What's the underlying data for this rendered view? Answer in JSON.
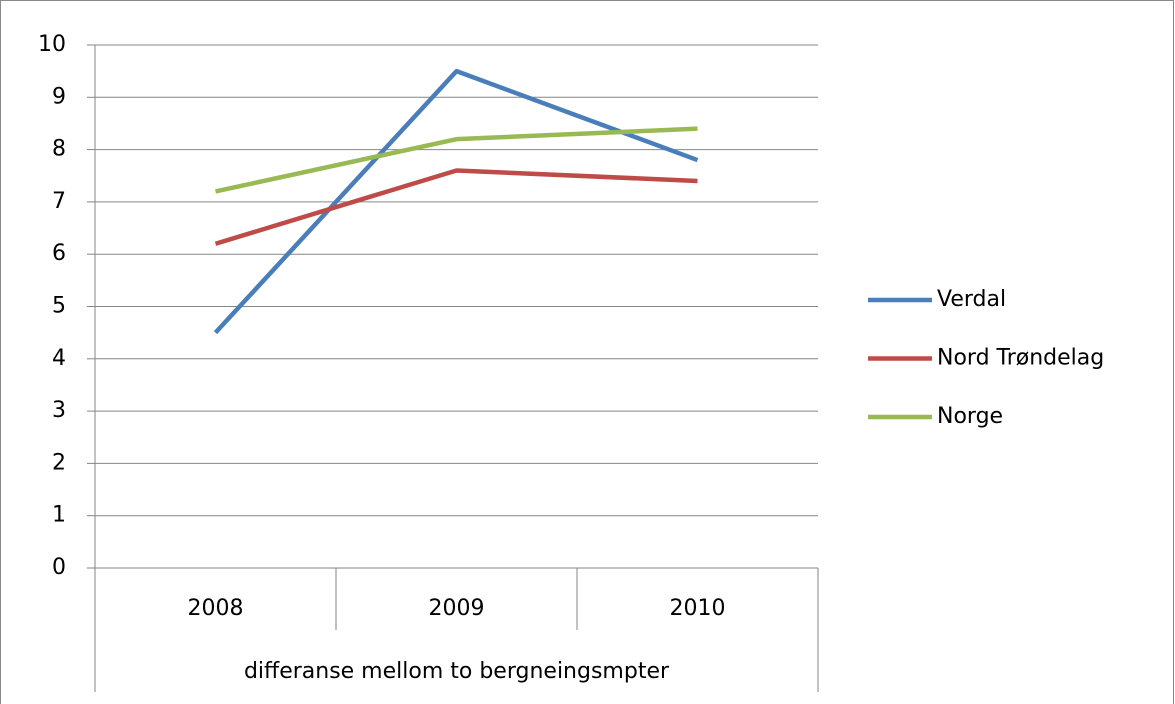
{
  "chart_data": {
    "type": "line",
    "categories": [
      "2008",
      "2009",
      "2010"
    ],
    "category_group_label": "differanse mellom to bergneingsmpter",
    "series": [
      {
        "name": "Verdal",
        "color": "#4a7ebb",
        "values": [
          4.5,
          9.5,
          7.8
        ]
      },
      {
        "name": "Nord Trøndelag",
        "color": "#be4b48",
        "values": [
          6.2,
          7.6,
          7.4
        ]
      },
      {
        "name": "Norge",
        "color": "#98b954",
        "values": [
          7.2,
          8.2,
          8.4
        ]
      }
    ],
    "ylim": [
      0,
      10
    ],
    "yticks": [
      0,
      1,
      2,
      3,
      4,
      5,
      6,
      7,
      8,
      9,
      10
    ],
    "grid": true,
    "legend": "right"
  }
}
